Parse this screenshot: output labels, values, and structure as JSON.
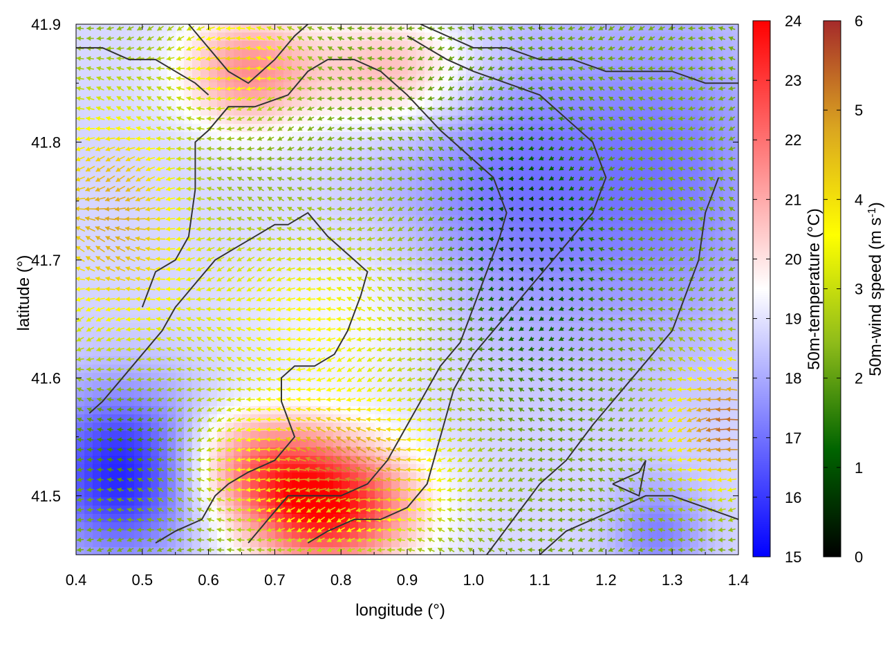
{
  "chart_data": {
    "type": "heatmap",
    "subtype": "vector-field-over-temperature-map",
    "xlabel": "longitude (°)",
    "ylabel": "latitude (°)",
    "xlim": [
      0.4,
      1.4
    ],
    "ylim": [
      41.45,
      41.9
    ],
    "x_ticks": [
      "0.4",
      "0.5",
      "0.6",
      "0.7",
      "0.8",
      "0.9",
      "1.0",
      "1.1",
      "1.2",
      "1.3",
      "1.4"
    ],
    "y_ticks": [
      "41.5",
      "41.6",
      "41.7",
      "41.8",
      "41.9"
    ],
    "temperature_colorbar": {
      "label": "50m-temperature (°C)",
      "range": [
        15,
        24
      ],
      "ticks": [
        "15",
        "16",
        "17",
        "18",
        "19",
        "20",
        "21",
        "22",
        "23",
        "24"
      ],
      "colors": [
        "#0000ff",
        "#ffffff",
        "#ff0000"
      ]
    },
    "wind_colorbar": {
      "label_main": "50m-wind speed (m s",
      "label_sup": "-1",
      "label_close": ")",
      "range": [
        0,
        6
      ],
      "ticks": [
        "0",
        "1",
        "2",
        "3",
        "4",
        "5",
        "6"
      ],
      "colors": [
        "#000000",
        "#006400",
        "#8fbc1a",
        "#ffff00",
        "#daa520",
        "#a52a2a"
      ]
    },
    "temperature_field": {
      "base": 18.8,
      "features": [
        {
          "lon": 0.78,
          "lat": 41.49,
          "dT": 5.0,
          "sx": 0.09,
          "sy": 0.035
        },
        {
          "lon": 0.68,
          "lat": 41.53,
          "dT": 2.4,
          "sx": 0.08,
          "sy": 0.03
        },
        {
          "lon": 0.66,
          "lat": 41.86,
          "dT": 2.6,
          "sx": 0.07,
          "sy": 0.035
        },
        {
          "lon": 0.88,
          "lat": 41.86,
          "dT": 2.2,
          "sx": 0.09,
          "sy": 0.035
        },
        {
          "lon": 0.47,
          "lat": 41.52,
          "dT": -3.2,
          "sx": 0.08,
          "sy": 0.05
        },
        {
          "lon": 1.07,
          "lat": 41.76,
          "dT": -1.8,
          "sx": 0.15,
          "sy": 0.09
        },
        {
          "lon": 1.32,
          "lat": 41.78,
          "dT": -1.2,
          "sx": 0.1,
          "sy": 0.1
        },
        {
          "lon": 1.28,
          "lat": 41.47,
          "dT": -1.5,
          "sx": 0.05,
          "sy": 0.03
        },
        {
          "lon": 0.85,
          "lat": 41.66,
          "dT": 0.8,
          "sx": 0.12,
          "sy": 0.06
        }
      ]
    },
    "wind_field": {
      "direction": "westward",
      "base_speed": 2.2,
      "features": [
        {
          "lon": 0.45,
          "lat": 41.74,
          "dV": 2.5,
          "sx": 0.08,
          "sy": 0.07
        },
        {
          "lon": 0.8,
          "lat": 41.52,
          "dV": 2.8,
          "sx": 0.12,
          "sy": 0.04
        },
        {
          "lon": 0.74,
          "lat": 41.65,
          "dV": 1.4,
          "sx": 0.15,
          "sy": 0.06
        },
        {
          "lon": 1.38,
          "lat": 41.56,
          "dV": 3.2,
          "sx": 0.06,
          "sy": 0.04
        },
        {
          "lon": 0.64,
          "lat": 41.87,
          "dV": 2.0,
          "sx": 0.06,
          "sy": 0.03
        },
        {
          "lon": 1.08,
          "lat": 41.71,
          "dV": -1.6,
          "sx": 0.08,
          "sy": 0.08
        },
        {
          "lon": 0.48,
          "lat": 41.55,
          "dV": -0.7,
          "sx": 0.06,
          "sy": 0.03
        }
      ]
    },
    "contours": [
      [
        [
          0.42,
          41.57
        ],
        [
          0.44,
          41.58
        ],
        [
          0.47,
          41.6
        ],
        [
          0.5,
          41.62
        ],
        [
          0.53,
          41.64
        ],
        [
          0.55,
          41.66
        ],
        [
          0.58,
          41.68
        ],
        [
          0.61,
          41.7
        ],
        [
          0.64,
          41.71
        ],
        [
          0.67,
          41.72
        ],
        [
          0.7,
          41.73
        ],
        [
          0.72,
          41.73
        ],
        [
          0.75,
          41.74
        ],
        [
          0.78,
          41.72
        ],
        [
          0.82,
          41.7
        ],
        [
          0.84,
          41.69
        ],
        [
          0.83,
          41.67
        ],
        [
          0.81,
          41.64
        ],
        [
          0.79,
          41.62
        ],
        [
          0.76,
          41.61
        ],
        [
          0.73,
          41.61
        ],
        [
          0.71,
          41.6
        ],
        [
          0.71,
          41.58
        ],
        [
          0.73,
          41.55
        ],
        [
          0.7,
          41.53
        ],
        [
          0.66,
          41.52
        ],
        [
          0.63,
          41.51
        ],
        [
          0.61,
          41.5
        ],
        [
          0.59,
          41.48
        ],
        [
          0.55,
          41.47
        ],
        [
          0.52,
          41.46
        ]
      ],
      [
        [
          0.66,
          41.46
        ],
        [
          0.69,
          41.48
        ],
        [
          0.72,
          41.5
        ],
        [
          0.76,
          41.5
        ],
        [
          0.8,
          41.5
        ],
        [
          0.84,
          41.51
        ],
        [
          0.87,
          41.53
        ],
        [
          0.9,
          41.56
        ],
        [
          0.92,
          41.58
        ],
        [
          0.95,
          41.61
        ],
        [
          0.98,
          41.63
        ],
        [
          1.0,
          41.66
        ],
        [
          1.02,
          41.69
        ],
        [
          1.04,
          41.72
        ],
        [
          1.05,
          41.74
        ],
        [
          1.03,
          41.77
        ],
        [
          0.99,
          41.79
        ],
        [
          0.95,
          41.81
        ],
        [
          0.9,
          41.84
        ],
        [
          0.86,
          41.86
        ],
        [
          0.82,
          41.87
        ],
        [
          0.78,
          41.87
        ],
        [
          0.75,
          41.86
        ],
        [
          0.72,
          41.84
        ],
        [
          0.67,
          41.83
        ],
        [
          0.63,
          41.83
        ],
        [
          0.6,
          41.81
        ],
        [
          0.58,
          41.8
        ],
        [
          0.58,
          41.76
        ],
        [
          0.57,
          41.72
        ],
        [
          0.55,
          41.7
        ],
        [
          0.52,
          41.69
        ],
        [
          0.5,
          41.66
        ]
      ],
      [
        [
          0.75,
          41.46
        ],
        [
          0.78,
          41.47
        ],
        [
          0.82,
          41.48
        ],
        [
          0.86,
          41.48
        ],
        [
          0.9,
          41.49
        ],
        [
          0.93,
          41.51
        ],
        [
          0.95,
          41.55
        ],
        [
          0.97,
          41.59
        ],
        [
          1.0,
          41.62
        ],
        [
          1.03,
          41.64
        ],
        [
          1.06,
          41.66
        ],
        [
          1.09,
          41.68
        ],
        [
          1.12,
          41.7
        ],
        [
          1.15,
          41.72
        ],
        [
          1.18,
          41.74
        ],
        [
          1.2,
          41.77
        ],
        [
          1.18,
          41.8
        ],
        [
          1.14,
          41.82
        ],
        [
          1.1,
          41.84
        ],
        [
          1.05,
          41.85
        ],
        [
          1.0,
          41.86
        ],
        [
          0.96,
          41.87
        ],
        [
          0.93,
          41.88
        ],
        [
          0.9,
          41.89
        ]
      ],
      [
        [
          1.02,
          41.45
        ],
        [
          1.06,
          41.48
        ],
        [
          1.1,
          41.51
        ],
        [
          1.14,
          41.53
        ],
        [
          1.18,
          41.56
        ],
        [
          1.21,
          41.58
        ],
        [
          1.24,
          41.6
        ],
        [
          1.27,
          41.62
        ],
        [
          1.3,
          41.64
        ],
        [
          1.32,
          41.67
        ],
        [
          1.34,
          41.7
        ],
        [
          1.35,
          41.74
        ],
        [
          1.37,
          41.77
        ]
      ],
      [
        [
          1.1,
          41.45
        ],
        [
          1.14,
          41.47
        ],
        [
          1.18,
          41.48
        ],
        [
          1.22,
          41.49
        ],
        [
          1.26,
          41.5
        ],
        [
          1.3,
          41.5
        ],
        [
          1.35,
          41.49
        ],
        [
          1.4,
          41.48
        ]
      ],
      [
        [
          1.21,
          41.51
        ],
        [
          1.25,
          41.52
        ],
        [
          1.26,
          41.53
        ],
        [
          1.25,
          41.5
        ],
        [
          1.21,
          41.51
        ]
      ],
      [
        [
          0.57,
          41.9
        ],
        [
          0.6,
          41.88
        ],
        [
          0.63,
          41.86
        ],
        [
          0.66,
          41.85
        ],
        [
          0.68,
          41.86
        ],
        [
          0.7,
          41.87
        ],
        [
          0.73,
          41.89
        ],
        [
          0.75,
          41.9
        ]
      ],
      [
        [
          0.4,
          41.88
        ],
        [
          0.44,
          41.88
        ],
        [
          0.48,
          41.87
        ],
        [
          0.52,
          41.87
        ],
        [
          0.55,
          41.86
        ],
        [
          0.58,
          41.85
        ],
        [
          0.6,
          41.84
        ]
      ],
      [
        [
          0.92,
          41.9
        ],
        [
          0.96,
          41.89
        ],
        [
          1.0,
          41.88
        ],
        [
          1.05,
          41.88
        ],
        [
          1.1,
          41.87
        ],
        [
          1.15,
          41.87
        ],
        [
          1.2,
          41.86
        ],
        [
          1.25,
          41.86
        ],
        [
          1.3,
          41.86
        ],
        [
          1.35,
          41.85
        ],
        [
          1.4,
          41.85
        ]
      ]
    ]
  }
}
